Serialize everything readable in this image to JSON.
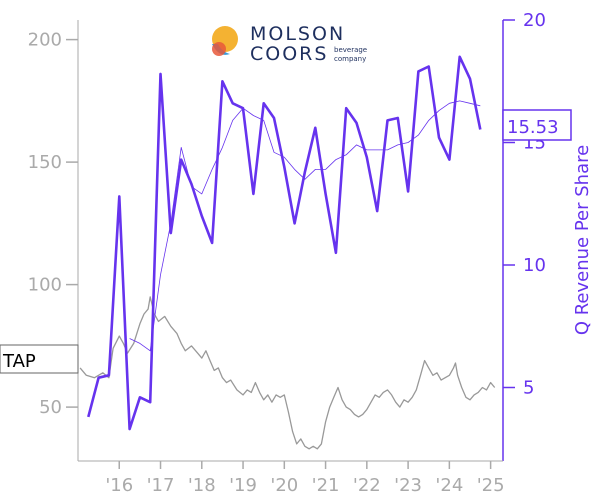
{
  "logo": {
    "line1": "MOLSON",
    "line2": "COORS",
    "tagline1": "beverage",
    "tagline2": "company",
    "colors": {
      "sun": "#f4b232",
      "drop": "#3a9bd9",
      "text": "#1e2f5e"
    }
  },
  "colors": {
    "price": "#999999",
    "revenue": "#6633ee",
    "revenue_avg": "#6633ee",
    "left_axis": "#aaaaaa",
    "right_axis": "#6633ee"
  },
  "chart_data": {
    "type": "line",
    "ticker": "TAP",
    "price_axis": {
      "ticks": [
        "200",
        "150",
        "100",
        "50"
      ],
      "ylim": [
        28,
        208
      ]
    },
    "revenue_axis": {
      "label": "Q Revenue Per Share",
      "ticks": [
        "20",
        "15",
        "10",
        "5"
      ],
      "ylim": [
        2,
        20
      ]
    },
    "x_axis": {
      "ticks": [
        "'16",
        "'17",
        "'18",
        "'19",
        "'20",
        "'21",
        "'22",
        "'23",
        "'24",
        "'25"
      ],
      "xlim": [
        2015.0,
        2025.3
      ]
    },
    "last_revenue_label": "15.53",
    "series": [
      {
        "name": "TAP",
        "axis": "left",
        "points": [
          [
            2015.05,
            66
          ],
          [
            2015.2,
            63
          ],
          [
            2015.4,
            62
          ],
          [
            2015.6,
            64
          ],
          [
            2015.75,
            62
          ],
          [
            2015.85,
            74
          ],
          [
            2016.0,
            79
          ],
          [
            2016.1,
            76
          ],
          [
            2016.2,
            72
          ],
          [
            2016.35,
            76
          ],
          [
            2016.5,
            84
          ],
          [
            2016.6,
            88
          ],
          [
            2016.7,
            90
          ],
          [
            2016.75,
            95
          ],
          [
            2016.85,
            88
          ],
          [
            2016.95,
            85
          ],
          [
            2017.1,
            87
          ],
          [
            2017.25,
            83
          ],
          [
            2017.4,
            80
          ],
          [
            2017.5,
            76
          ],
          [
            2017.6,
            73
          ],
          [
            2017.75,
            75
          ],
          [
            2017.9,
            72
          ],
          [
            2018.0,
            70
          ],
          [
            2018.1,
            73
          ],
          [
            2018.2,
            69
          ],
          [
            2018.3,
            65
          ],
          [
            2018.4,
            66
          ],
          [
            2018.5,
            62
          ],
          [
            2018.6,
            60
          ],
          [
            2018.7,
            61
          ],
          [
            2018.85,
            57
          ],
          [
            2019.0,
            55
          ],
          [
            2019.1,
            57
          ],
          [
            2019.2,
            56
          ],
          [
            2019.3,
            60
          ],
          [
            2019.4,
            56
          ],
          [
            2019.5,
            53
          ],
          [
            2019.6,
            55
          ],
          [
            2019.7,
            52
          ],
          [
            2019.8,
            55
          ],
          [
            2019.9,
            54
          ],
          [
            2020.0,
            55
          ],
          [
            2020.1,
            48
          ],
          [
            2020.2,
            40
          ],
          [
            2020.3,
            35
          ],
          [
            2020.4,
            37
          ],
          [
            2020.5,
            34
          ],
          [
            2020.6,
            33
          ],
          [
            2020.7,
            34
          ],
          [
            2020.8,
            33
          ],
          [
            2020.9,
            35
          ],
          [
            2021.0,
            44
          ],
          [
            2021.1,
            50
          ],
          [
            2021.2,
            54
          ],
          [
            2021.3,
            58
          ],
          [
            2021.4,
            53
          ],
          [
            2021.5,
            50
          ],
          [
            2021.6,
            49
          ],
          [
            2021.7,
            47
          ],
          [
            2021.8,
            46
          ],
          [
            2021.9,
            47
          ],
          [
            2022.0,
            49
          ],
          [
            2022.1,
            52
          ],
          [
            2022.2,
            55
          ],
          [
            2022.3,
            54
          ],
          [
            2022.4,
            56
          ],
          [
            2022.5,
            57
          ],
          [
            2022.6,
            55
          ],
          [
            2022.7,
            52
          ],
          [
            2022.8,
            50
          ],
          [
            2022.9,
            53
          ],
          [
            2023.0,
            52
          ],
          [
            2023.1,
            54
          ],
          [
            2023.2,
            57
          ],
          [
            2023.3,
            63
          ],
          [
            2023.4,
            69
          ],
          [
            2023.5,
            66
          ],
          [
            2023.6,
            63
          ],
          [
            2023.7,
            64
          ],
          [
            2023.8,
            61
          ],
          [
            2023.9,
            62
          ],
          [
            2024.0,
            63
          ],
          [
            2024.1,
            66
          ],
          [
            2024.15,
            68
          ],
          [
            2024.2,
            63
          ],
          [
            2024.3,
            58
          ],
          [
            2024.4,
            54
          ],
          [
            2024.5,
            53
          ],
          [
            2024.6,
            55
          ],
          [
            2024.7,
            56
          ],
          [
            2024.8,
            58
          ],
          [
            2024.9,
            57
          ],
          [
            2025.0,
            60
          ],
          [
            2025.1,
            58
          ]
        ]
      },
      {
        "name": "Q Revenue Per Share",
        "axis": "right",
        "points": [
          [
            2015.25,
            3.8
          ],
          [
            2015.5,
            5.4
          ],
          [
            2015.75,
            5.5
          ],
          [
            2016.0,
            12.8
          ],
          [
            2016.25,
            3.3
          ],
          [
            2016.5,
            4.6
          ],
          [
            2016.75,
            4.4
          ],
          [
            2017.0,
            17.8
          ],
          [
            2017.25,
            11.3
          ],
          [
            2017.5,
            14.3
          ],
          [
            2017.75,
            13.3
          ],
          [
            2018.0,
            12.0
          ],
          [
            2018.25,
            10.9
          ],
          [
            2018.5,
            17.5
          ],
          [
            2018.75,
            16.6
          ],
          [
            2019.0,
            16.4
          ],
          [
            2019.25,
            12.9
          ],
          [
            2019.5,
            16.6
          ],
          [
            2019.75,
            16.0
          ],
          [
            2020.0,
            14.0
          ],
          [
            2020.25,
            11.7
          ],
          [
            2020.5,
            13.8
          ],
          [
            2020.75,
            15.6
          ],
          [
            2021.0,
            12.9
          ],
          [
            2021.25,
            10.5
          ],
          [
            2021.5,
            16.4
          ],
          [
            2021.75,
            15.8
          ],
          [
            2022.0,
            14.4
          ],
          [
            2022.25,
            12.2
          ],
          [
            2022.5,
            15.9
          ],
          [
            2022.75,
            16.0
          ],
          [
            2023.0,
            13.0
          ],
          [
            2023.25,
            17.9
          ],
          [
            2023.5,
            18.1
          ],
          [
            2023.75,
            15.2
          ],
          [
            2024.0,
            14.3
          ],
          [
            2024.25,
            18.5
          ],
          [
            2024.5,
            17.6
          ],
          [
            2024.75,
            15.53
          ]
        ]
      },
      {
        "name": "revenue trailing average",
        "axis": "right",
        "points": [
          [
            2016.25,
            7.0
          ],
          [
            2016.5,
            6.8
          ],
          [
            2016.75,
            6.5
          ],
          [
            2017.0,
            9.6
          ],
          [
            2017.25,
            11.7
          ],
          [
            2017.5,
            14.8
          ],
          [
            2017.75,
            13.2
          ],
          [
            2018.0,
            12.9
          ],
          [
            2018.25,
            13.9
          ],
          [
            2018.5,
            14.8
          ],
          [
            2018.75,
            15.9
          ],
          [
            2019.0,
            16.4
          ],
          [
            2019.25,
            16.1
          ],
          [
            2019.5,
            15.9
          ],
          [
            2019.75,
            14.6
          ],
          [
            2020.0,
            14.4
          ],
          [
            2020.25,
            13.9
          ],
          [
            2020.5,
            13.5
          ],
          [
            2020.75,
            13.9
          ],
          [
            2021.0,
            13.9
          ],
          [
            2021.25,
            14.3
          ],
          [
            2021.5,
            14.5
          ],
          [
            2021.75,
            14.9
          ],
          [
            2022.0,
            14.7
          ],
          [
            2022.25,
            14.7
          ],
          [
            2022.5,
            14.7
          ],
          [
            2022.75,
            14.9
          ],
          [
            2023.0,
            15.0
          ],
          [
            2023.25,
            15.3
          ],
          [
            2023.5,
            15.9
          ],
          [
            2023.75,
            16.3
          ],
          [
            2024.0,
            16.6
          ],
          [
            2024.25,
            16.7
          ],
          [
            2024.5,
            16.6
          ],
          [
            2024.75,
            16.5
          ]
        ]
      }
    ]
  }
}
